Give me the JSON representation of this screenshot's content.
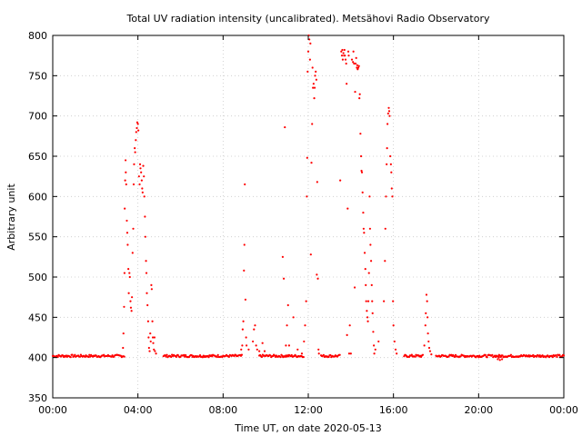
{
  "chart_data": {
    "type": "scatter",
    "title": "Total UV radiation intensity (uncalibrated). Metsähovi Radio Observatory",
    "xlabel": "Time UT, on date 2020-05-13",
    "ylabel": "Arbitrary unit",
    "xlim": [
      0,
      24
    ],
    "ylim": [
      350,
      800
    ],
    "x_ticks": [
      0,
      4,
      8,
      12,
      16,
      20,
      24
    ],
    "x_tick_labels": [
      "00:00",
      "04:00",
      "08:00",
      "12:00",
      "16:00",
      "20:00",
      "00:00"
    ],
    "y_ticks": [
      350,
      400,
      450,
      500,
      550,
      600,
      650,
      700,
      750,
      800
    ],
    "y_tick_labels": [
      "350",
      "400",
      "450",
      "500",
      "550",
      "600",
      "650",
      "700",
      "750",
      "800"
    ],
    "grid": true,
    "point_color": "#ff0000",
    "baseline": {
      "value": 402,
      "jitter": 1.5,
      "ranges": [
        [
          0,
          3.4
        ],
        [
          5.2,
          8.9
        ],
        [
          9.7,
          11.8
        ],
        [
          12.6,
          13.5
        ],
        [
          16.5,
          17.4
        ],
        [
          18.0,
          24
        ]
      ]
    },
    "points": [
      [
        3.3,
        412
      ],
      [
        3.32,
        430
      ],
      [
        3.35,
        463
      ],
      [
        3.37,
        505
      ],
      [
        3.38,
        585
      ],
      [
        3.4,
        620
      ],
      [
        3.42,
        645
      ],
      [
        3.43,
        630
      ],
      [
        3.45,
        615
      ],
      [
        3.48,
        570
      ],
      [
        3.5,
        555
      ],
      [
        3.52,
        540
      ],
      [
        3.55,
        510
      ],
      [
        3.57,
        480
      ],
      [
        3.6,
        505
      ],
      [
        3.62,
        500
      ],
      [
        3.65,
        470
      ],
      [
        3.67,
        462
      ],
      [
        3.7,
        458
      ],
      [
        3.72,
        475
      ],
      [
        3.75,
        530
      ],
      [
        3.78,
        560
      ],
      [
        3.8,
        615
      ],
      [
        3.82,
        640
      ],
      [
        3.85,
        660
      ],
      [
        3.87,
        655
      ],
      [
        3.9,
        670
      ],
      [
        3.92,
        680
      ],
      [
        3.95,
        685
      ],
      [
        3.97,
        692
      ],
      [
        4.0,
        690
      ],
      [
        4.02,
        682
      ],
      [
        4.05,
        625
      ],
      [
        4.08,
        615
      ],
      [
        4.1,
        640
      ],
      [
        4.12,
        635
      ],
      [
        4.15,
        630
      ],
      [
        4.18,
        620
      ],
      [
        4.2,
        610
      ],
      [
        4.22,
        605
      ],
      [
        4.25,
        638
      ],
      [
        4.28,
        625
      ],
      [
        4.3,
        600
      ],
      [
        4.33,
        575
      ],
      [
        4.35,
        550
      ],
      [
        4.38,
        520
      ],
      [
        4.4,
        505
      ],
      [
        4.42,
        480
      ],
      [
        4.45,
        465
      ],
      [
        4.48,
        445
      ],
      [
        4.5,
        425
      ],
      [
        4.52,
        412
      ],
      [
        4.55,
        408
      ],
      [
        4.58,
        430
      ],
      [
        4.6,
        420
      ],
      [
        4.63,
        490
      ],
      [
        4.65,
        485
      ],
      [
        4.68,
        445
      ],
      [
        4.7,
        425
      ],
      [
        4.72,
        418
      ],
      [
        4.75,
        410
      ],
      [
        4.78,
        425
      ],
      [
        4.8,
        408
      ],
      [
        4.85,
        405
      ],
      [
        8.85,
        410
      ],
      [
        8.9,
        415
      ],
      [
        8.92,
        435
      ],
      [
        8.95,
        445
      ],
      [
        8.98,
        508
      ],
      [
        9.0,
        540
      ],
      [
        9.02,
        615
      ],
      [
        9.05,
        472
      ],
      [
        9.08,
        425
      ],
      [
        9.1,
        415
      ],
      [
        9.2,
        410
      ],
      [
        9.4,
        420
      ],
      [
        9.45,
        435
      ],
      [
        9.5,
        440
      ],
      [
        9.55,
        415
      ],
      [
        9.6,
        410
      ],
      [
        9.7,
        408
      ],
      [
        9.85,
        418
      ],
      [
        9.95,
        408
      ],
      [
        10.8,
        525
      ],
      [
        10.85,
        498
      ],
      [
        10.9,
        686
      ],
      [
        10.95,
        415
      ],
      [
        11.0,
        440
      ],
      [
        11.05,
        465
      ],
      [
        11.1,
        415
      ],
      [
        11.3,
        450
      ],
      [
        11.5,
        410
      ],
      [
        11.7,
        405
      ],
      [
        11.8,
        420
      ],
      [
        11.85,
        440
      ],
      [
        11.9,
        470
      ],
      [
        11.93,
        600
      ],
      [
        11.95,
        648
      ],
      [
        11.97,
        755
      ],
      [
        12.0,
        780
      ],
      [
        12.02,
        800
      ],
      [
        12.05,
        795
      ],
      [
        12.08,
        770
      ],
      [
        12.1,
        790
      ],
      [
        12.12,
        528
      ],
      [
        12.15,
        642
      ],
      [
        12.18,
        690
      ],
      [
        12.2,
        760
      ],
      [
        12.22,
        735
      ],
      [
        12.25,
        740
      ],
      [
        12.28,
        722
      ],
      [
        12.3,
        735
      ],
      [
        12.32,
        750
      ],
      [
        12.35,
        755
      ],
      [
        12.38,
        745
      ],
      [
        12.4,
        503
      ],
      [
        12.42,
        618
      ],
      [
        12.45,
        498
      ],
      [
        12.48,
        410
      ],
      [
        12.5,
        405
      ],
      [
        13.5,
        620
      ],
      [
        13.55,
        780
      ],
      [
        13.58,
        775
      ],
      [
        13.6,
        782
      ],
      [
        13.62,
        770
      ],
      [
        13.65,
        778
      ],
      [
        13.68,
        775
      ],
      [
        13.7,
        782
      ],
      [
        13.72,
        775
      ],
      [
        13.75,
        770
      ],
      [
        13.78,
        765
      ],
      [
        13.8,
        740
      ],
      [
        13.82,
        428
      ],
      [
        13.85,
        585
      ],
      [
        13.88,
        780
      ],
      [
        13.9,
        775
      ],
      [
        13.92,
        405
      ],
      [
        13.95,
        440
      ],
      [
        14.0,
        405
      ],
      [
        14.05,
        770
      ],
      [
        14.1,
        767
      ],
      [
        14.12,
        780
      ],
      [
        14.15,
        765
      ],
      [
        14.18,
        487
      ],
      [
        14.2,
        730
      ],
      [
        14.22,
        765
      ],
      [
        14.25,
        772
      ],
      [
        14.28,
        760
      ],
      [
        14.3,
        763
      ],
      [
        14.32,
        758
      ],
      [
        14.35,
        760
      ],
      [
        14.38,
        762
      ],
      [
        14.4,
        722
      ],
      [
        14.42,
        727
      ],
      [
        14.45,
        678
      ],
      [
        14.48,
        650
      ],
      [
        14.5,
        632
      ],
      [
        14.52,
        630
      ],
      [
        14.55,
        605
      ],
      [
        14.58,
        580
      ],
      [
        14.6,
        560
      ],
      [
        14.62,
        555
      ],
      [
        14.65,
        530
      ],
      [
        14.68,
        510
      ],
      [
        14.7,
        490
      ],
      [
        14.72,
        470
      ],
      [
        14.75,
        458
      ],
      [
        14.78,
        450
      ],
      [
        14.8,
        445
      ],
      [
        14.82,
        470
      ],
      [
        14.85,
        505
      ],
      [
        14.88,
        600
      ],
      [
        14.9,
        560
      ],
      [
        14.92,
        540
      ],
      [
        14.95,
        520
      ],
      [
        14.98,
        490
      ],
      [
        15.0,
        470
      ],
      [
        15.02,
        455
      ],
      [
        15.05,
        432
      ],
      [
        15.08,
        415
      ],
      [
        15.1,
        405
      ],
      [
        15.15,
        410
      ],
      [
        15.3,
        420
      ],
      [
        15.55,
        470
      ],
      [
        15.6,
        520
      ],
      [
        15.62,
        560
      ],
      [
        15.65,
        600
      ],
      [
        15.68,
        640
      ],
      [
        15.7,
        660
      ],
      [
        15.72,
        690
      ],
      [
        15.75,
        703
      ],
      [
        15.78,
        710
      ],
      [
        15.8,
        706
      ],
      [
        15.82,
        700
      ],
      [
        15.85,
        650
      ],
      [
        15.88,
        640
      ],
      [
        15.9,
        630
      ],
      [
        15.92,
        610
      ],
      [
        15.95,
        600
      ],
      [
        15.98,
        470
      ],
      [
        16.0,
        440
      ],
      [
        16.05,
        420
      ],
      [
        16.1,
        410
      ],
      [
        16.15,
        405
      ],
      [
        17.45,
        415
      ],
      [
        17.5,
        440
      ],
      [
        17.52,
        455
      ],
      [
        17.55,
        478
      ],
      [
        17.58,
        470
      ],
      [
        17.6,
        450
      ],
      [
        17.62,
        430
      ],
      [
        17.65,
        420
      ],
      [
        17.68,
        412
      ],
      [
        17.72,
        408
      ],
      [
        17.78,
        404
      ],
      [
        20.9,
        398
      ],
      [
        20.95,
        400
      ],
      [
        21.0,
        397
      ],
      [
        21.05,
        401
      ],
      [
        21.1,
        398
      ]
    ]
  }
}
